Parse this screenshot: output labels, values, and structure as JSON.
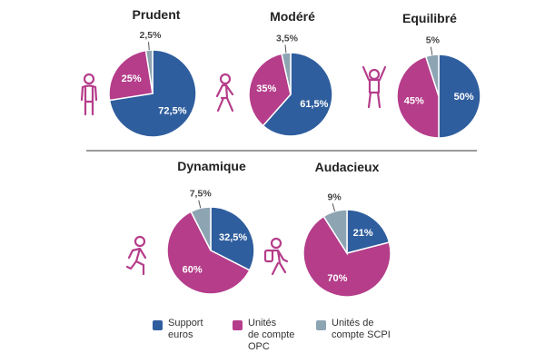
{
  "chart_data": [
    {
      "type": "pie",
      "title": "Prudent",
      "categories": [
        "Support euros",
        "Unités de compte OPC",
        "Unités de compte SCPI"
      ],
      "values": [
        72.5,
        25,
        2.5
      ],
      "labels": [
        "72,5%",
        "25%",
        "2,5%"
      ]
    },
    {
      "type": "pie",
      "title": "Modéré",
      "categories": [
        "Support euros",
        "Unités de compte OPC",
        "Unités de compte SCPI"
      ],
      "values": [
        61.5,
        35,
        3.5
      ],
      "labels": [
        "61,5%",
        "35%",
        "3,5%"
      ]
    },
    {
      "type": "pie",
      "title": "Equilibré",
      "categories": [
        "Support euros",
        "Unités de compte OPC",
        "Unités de compte SCPI"
      ],
      "values": [
        50,
        45,
        5
      ],
      "labels": [
        "50%",
        "45%",
        "5%"
      ]
    },
    {
      "type": "pie",
      "title": "Dynamique",
      "categories": [
        "Support euros",
        "Unités de compte OPC",
        "Unités de compte SCPI"
      ],
      "values": [
        32.5,
        60,
        7.5
      ],
      "labels": [
        "32,5%",
        "60%",
        "7,5%"
      ]
    },
    {
      "type": "pie",
      "title": "Audacieux",
      "categories": [
        "Support euros",
        "Unités de compte OPC",
        "Unités de compte SCPI"
      ],
      "values": [
        21,
        70,
        9
      ],
      "labels": [
        "21%",
        "70%",
        "9%"
      ]
    }
  ],
  "colors": {
    "support_euros": "#2f5e9e",
    "uc_opc": "#b53d8a",
    "uc_scpi": "#8da4b3",
    "figure": "#b53d8a",
    "divider": "#9a9a9a",
    "text": "#222222"
  },
  "icons": [
    "standing-person-icon",
    "walking-person-icon",
    "cheering-person-icon",
    "running-person-icon",
    "hiking-person-icon"
  ],
  "legend": {
    "position": "bottom-center",
    "items": [
      {
        "label": "Support\neuros",
        "color": "#2f5e9e"
      },
      {
        "label": "Unités\nde compte\nOPC",
        "color": "#b53d8a"
      },
      {
        "label": "Unités de\ncompte SCPI",
        "color": "#8da4b3"
      }
    ]
  }
}
